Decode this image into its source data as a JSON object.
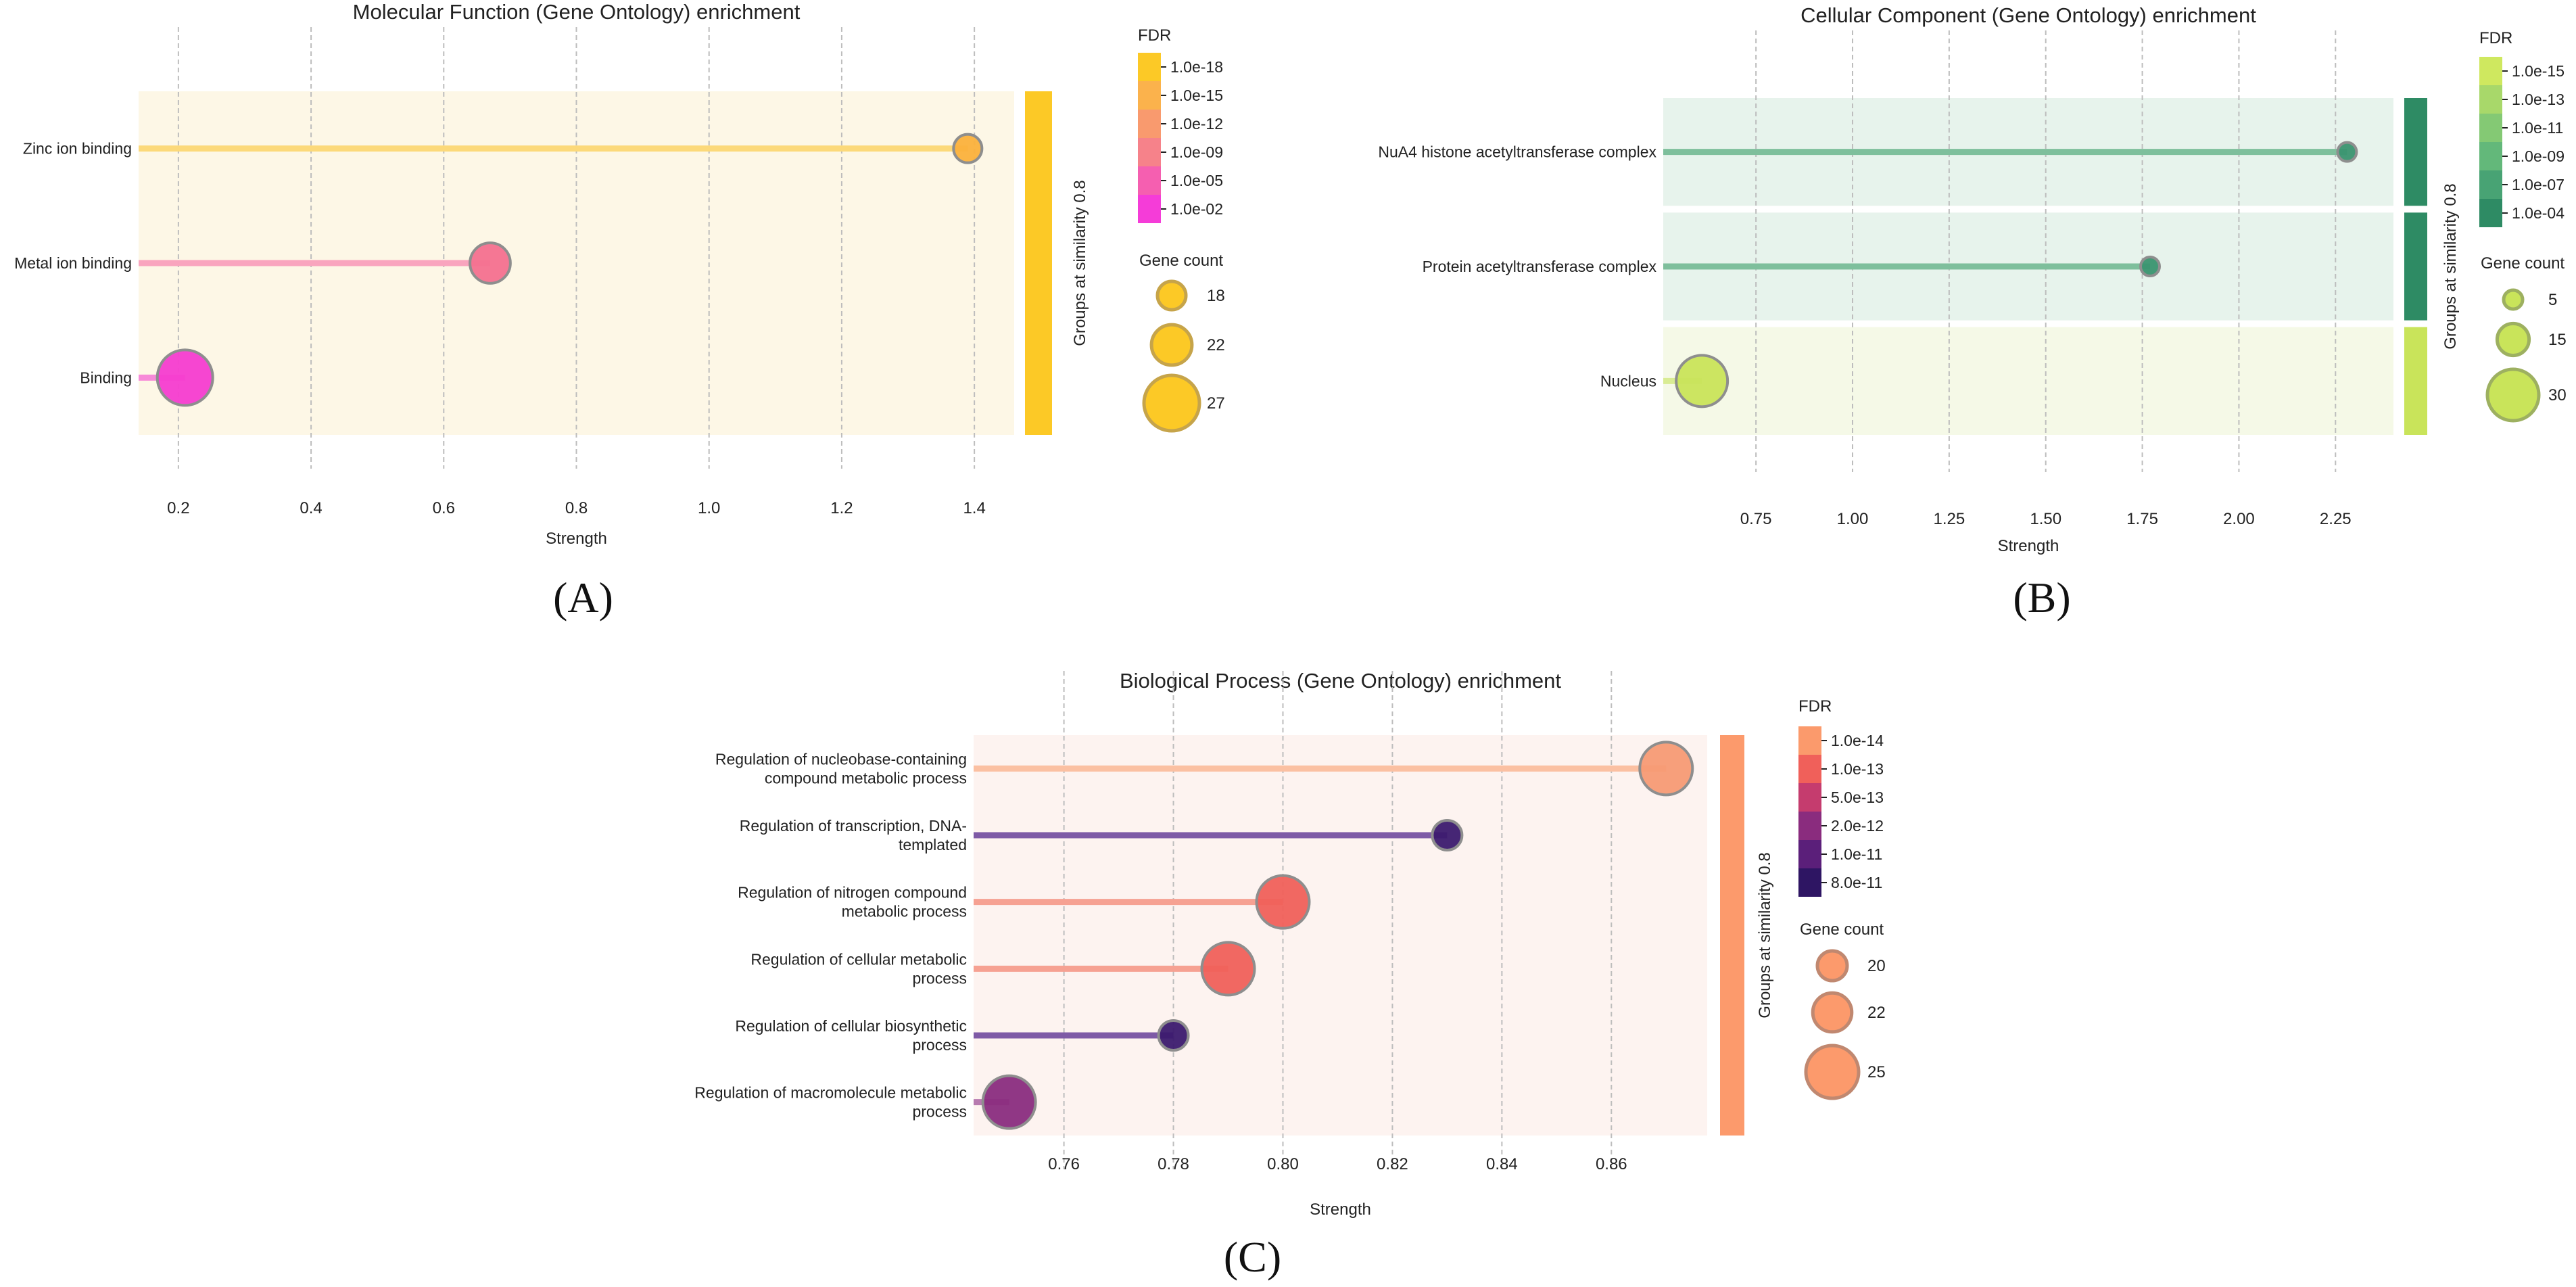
{
  "chart_data": [
    {
      "id": "A",
      "type": "lollipop",
      "title": "Molecular Function (Gene Ontology) enrichment",
      "xlabel": "Strength",
      "xlim": [
        0.14,
        1.46
      ],
      "xticks": [
        0.2,
        0.4,
        0.6,
        0.8,
        1.0,
        1.2,
        1.4
      ],
      "xtick_labels": [
        "0.2",
        "0.4",
        "0.6",
        "0.8",
        "1.0",
        "1.2",
        "1.4"
      ],
      "group_label": "Groups at similarity 0.8",
      "background_color": "#fdf7e6",
      "groups": [
        {
          "color": "#fcc926",
          "rows": [
            0,
            1,
            2
          ]
        }
      ],
      "terms": [
        {
          "label": [
            "Zinc ion binding"
          ],
          "strength": 1.39,
          "gene_count": 18,
          "color": "#fbb13c",
          "line_color": "#fcd97a"
        },
        {
          "label": [
            "Metal ion binding"
          ],
          "strength": 0.67,
          "gene_count": 22,
          "color": "#f4708f",
          "line_color": "#f9a5be"
        },
        {
          "label": [
            "Binding"
          ],
          "strength": 0.21,
          "gene_count": 27,
          "color": "#f53cd0",
          "line_color": "#f78ad8"
        }
      ],
      "fdr_legend": {
        "title": "FDR",
        "labels": [
          "1.0e-18",
          "1.0e-15",
          "1.0e-12",
          "1.0e-09",
          "1.0e-05",
          "1.0e-02"
        ],
        "colors": [
          "#fcc926",
          "#fbb24c",
          "#f99a6e",
          "#f6828a",
          "#f55fb0",
          "#f53cd8"
        ]
      },
      "count_legend": {
        "title": "Gene count",
        "values": [
          18,
          22,
          27
        ],
        "fill": "#fcc926",
        "stroke": "#c6a44a"
      },
      "panel_label": "(A)"
    },
    {
      "id": "B",
      "type": "lollipop",
      "title": "Cellular Component (Gene Ontology) enrichment",
      "xlabel": "Strength",
      "xlim": [
        0.51,
        2.4
      ],
      "xticks": [
        0.75,
        1.0,
        1.25,
        1.5,
        1.75,
        2.0,
        2.25
      ],
      "xtick_labels": [
        "0.75",
        "1.00",
        "1.25",
        "1.50",
        "1.75",
        "2.00",
        "2.25"
      ],
      "group_label": "Groups at similarity 0.8",
      "groups": [
        {
          "color": "#2e8b64",
          "bg": "#e7f3ec",
          "rows": [
            0
          ]
        },
        {
          "color": "#2e8b64",
          "bg": "#e7f3ec",
          "rows": [
            1
          ]
        },
        {
          "color": "#c9e45a",
          "bg": "#f5f9e7",
          "rows": [
            2
          ]
        }
      ],
      "terms": [
        {
          "label": [
            "NuA4 histone acetyltransferase complex"
          ],
          "strength": 2.28,
          "gene_count": 5,
          "color": "#3a9470",
          "line_color": "#7ebf9c"
        },
        {
          "label": [
            "Protein acetyltransferase complex"
          ],
          "strength": 1.77,
          "gene_count": 5,
          "color": "#3a9470",
          "line_color": "#7ebf9c"
        },
        {
          "label": [
            "Nucleus"
          ],
          "strength": 0.61,
          "gene_count": 30,
          "color": "#c9e45a",
          "line_color": "#d9ec94"
        }
      ],
      "fdr_legend": {
        "title": "FDR",
        "labels": [
          "1.0e-15",
          "1.0e-13",
          "1.0e-11",
          "1.0e-09",
          "1.0e-07",
          "1.0e-04"
        ],
        "colors": [
          "#cfe85f",
          "#a8d86a",
          "#84c974",
          "#63b87a",
          "#48a374",
          "#2e8b64"
        ]
      },
      "count_legend": {
        "title": "Gene count",
        "values": [
          5,
          15,
          30
        ],
        "fill": "#c9e45a",
        "stroke": "#9db060"
      },
      "panel_label": "(B)"
    },
    {
      "id": "C",
      "type": "lollipop",
      "title": "Biological Process (Gene Ontology) enrichment",
      "xlabel": "Strength",
      "xlim": [
        0.7435,
        0.8775
      ],
      "xticks": [
        0.76,
        0.78,
        0.8,
        0.82,
        0.84,
        0.86
      ],
      "xtick_labels": [
        "0.76",
        "0.78",
        "0.80",
        "0.82",
        "0.84",
        "0.86"
      ],
      "group_label": "Groups at similarity 0.8",
      "background_color": "#fdf3f0",
      "groups": [
        {
          "color": "#fc9a6c",
          "rows": [
            0,
            1,
            2,
            3,
            4,
            5
          ]
        }
      ],
      "terms": [
        {
          "label": [
            "Regulation of nucleobase-containing",
            "compound metabolic process"
          ],
          "strength": 0.87,
          "gene_count": 25,
          "color": "#f79a74",
          "line_color": "#fbc0a2"
        },
        {
          "label": [
            "Regulation of transcription, DNA-",
            "templated"
          ],
          "strength": 0.83,
          "gene_count": 20,
          "color": "#3c1a6e",
          "line_color": "#7e5aa6"
        },
        {
          "label": [
            "Regulation of nitrogen compound",
            "metabolic process"
          ],
          "strength": 0.8,
          "gene_count": 25,
          "color": "#f0605a",
          "line_color": "#f6a192"
        },
        {
          "label": [
            "Regulation of cellular metabolic",
            "process"
          ],
          "strength": 0.79,
          "gene_count": 25,
          "color": "#f0605a",
          "line_color": "#f6a192"
        },
        {
          "label": [
            "Regulation of cellular biosynthetic",
            "process"
          ],
          "strength": 0.78,
          "gene_count": 20,
          "color": "#3c1a6e",
          "line_color": "#7e5aa6"
        },
        {
          "label": [
            "Regulation of macromolecule metabolic",
            "process"
          ],
          "strength": 0.75,
          "gene_count": 25,
          "color": "#8a2c7e",
          "line_color": "#b77bb0"
        }
      ],
      "fdr_legend": {
        "title": "FDR",
        "labels": [
          "1.0e-14",
          "1.0e-13",
          "5.0e-13",
          "2.0e-12",
          "1.0e-11",
          "8.0e-11"
        ],
        "colors": [
          "#fb9a6c",
          "#f0605a",
          "#c53c6e",
          "#8a2c7e",
          "#5b1f7a",
          "#2e1563"
        ]
      },
      "count_legend": {
        "title": "Gene count",
        "values": [
          20,
          22,
          25
        ],
        "fill": "#fc9a6c",
        "stroke": "#c08870"
      },
      "panel_label": "(C)"
    }
  ]
}
